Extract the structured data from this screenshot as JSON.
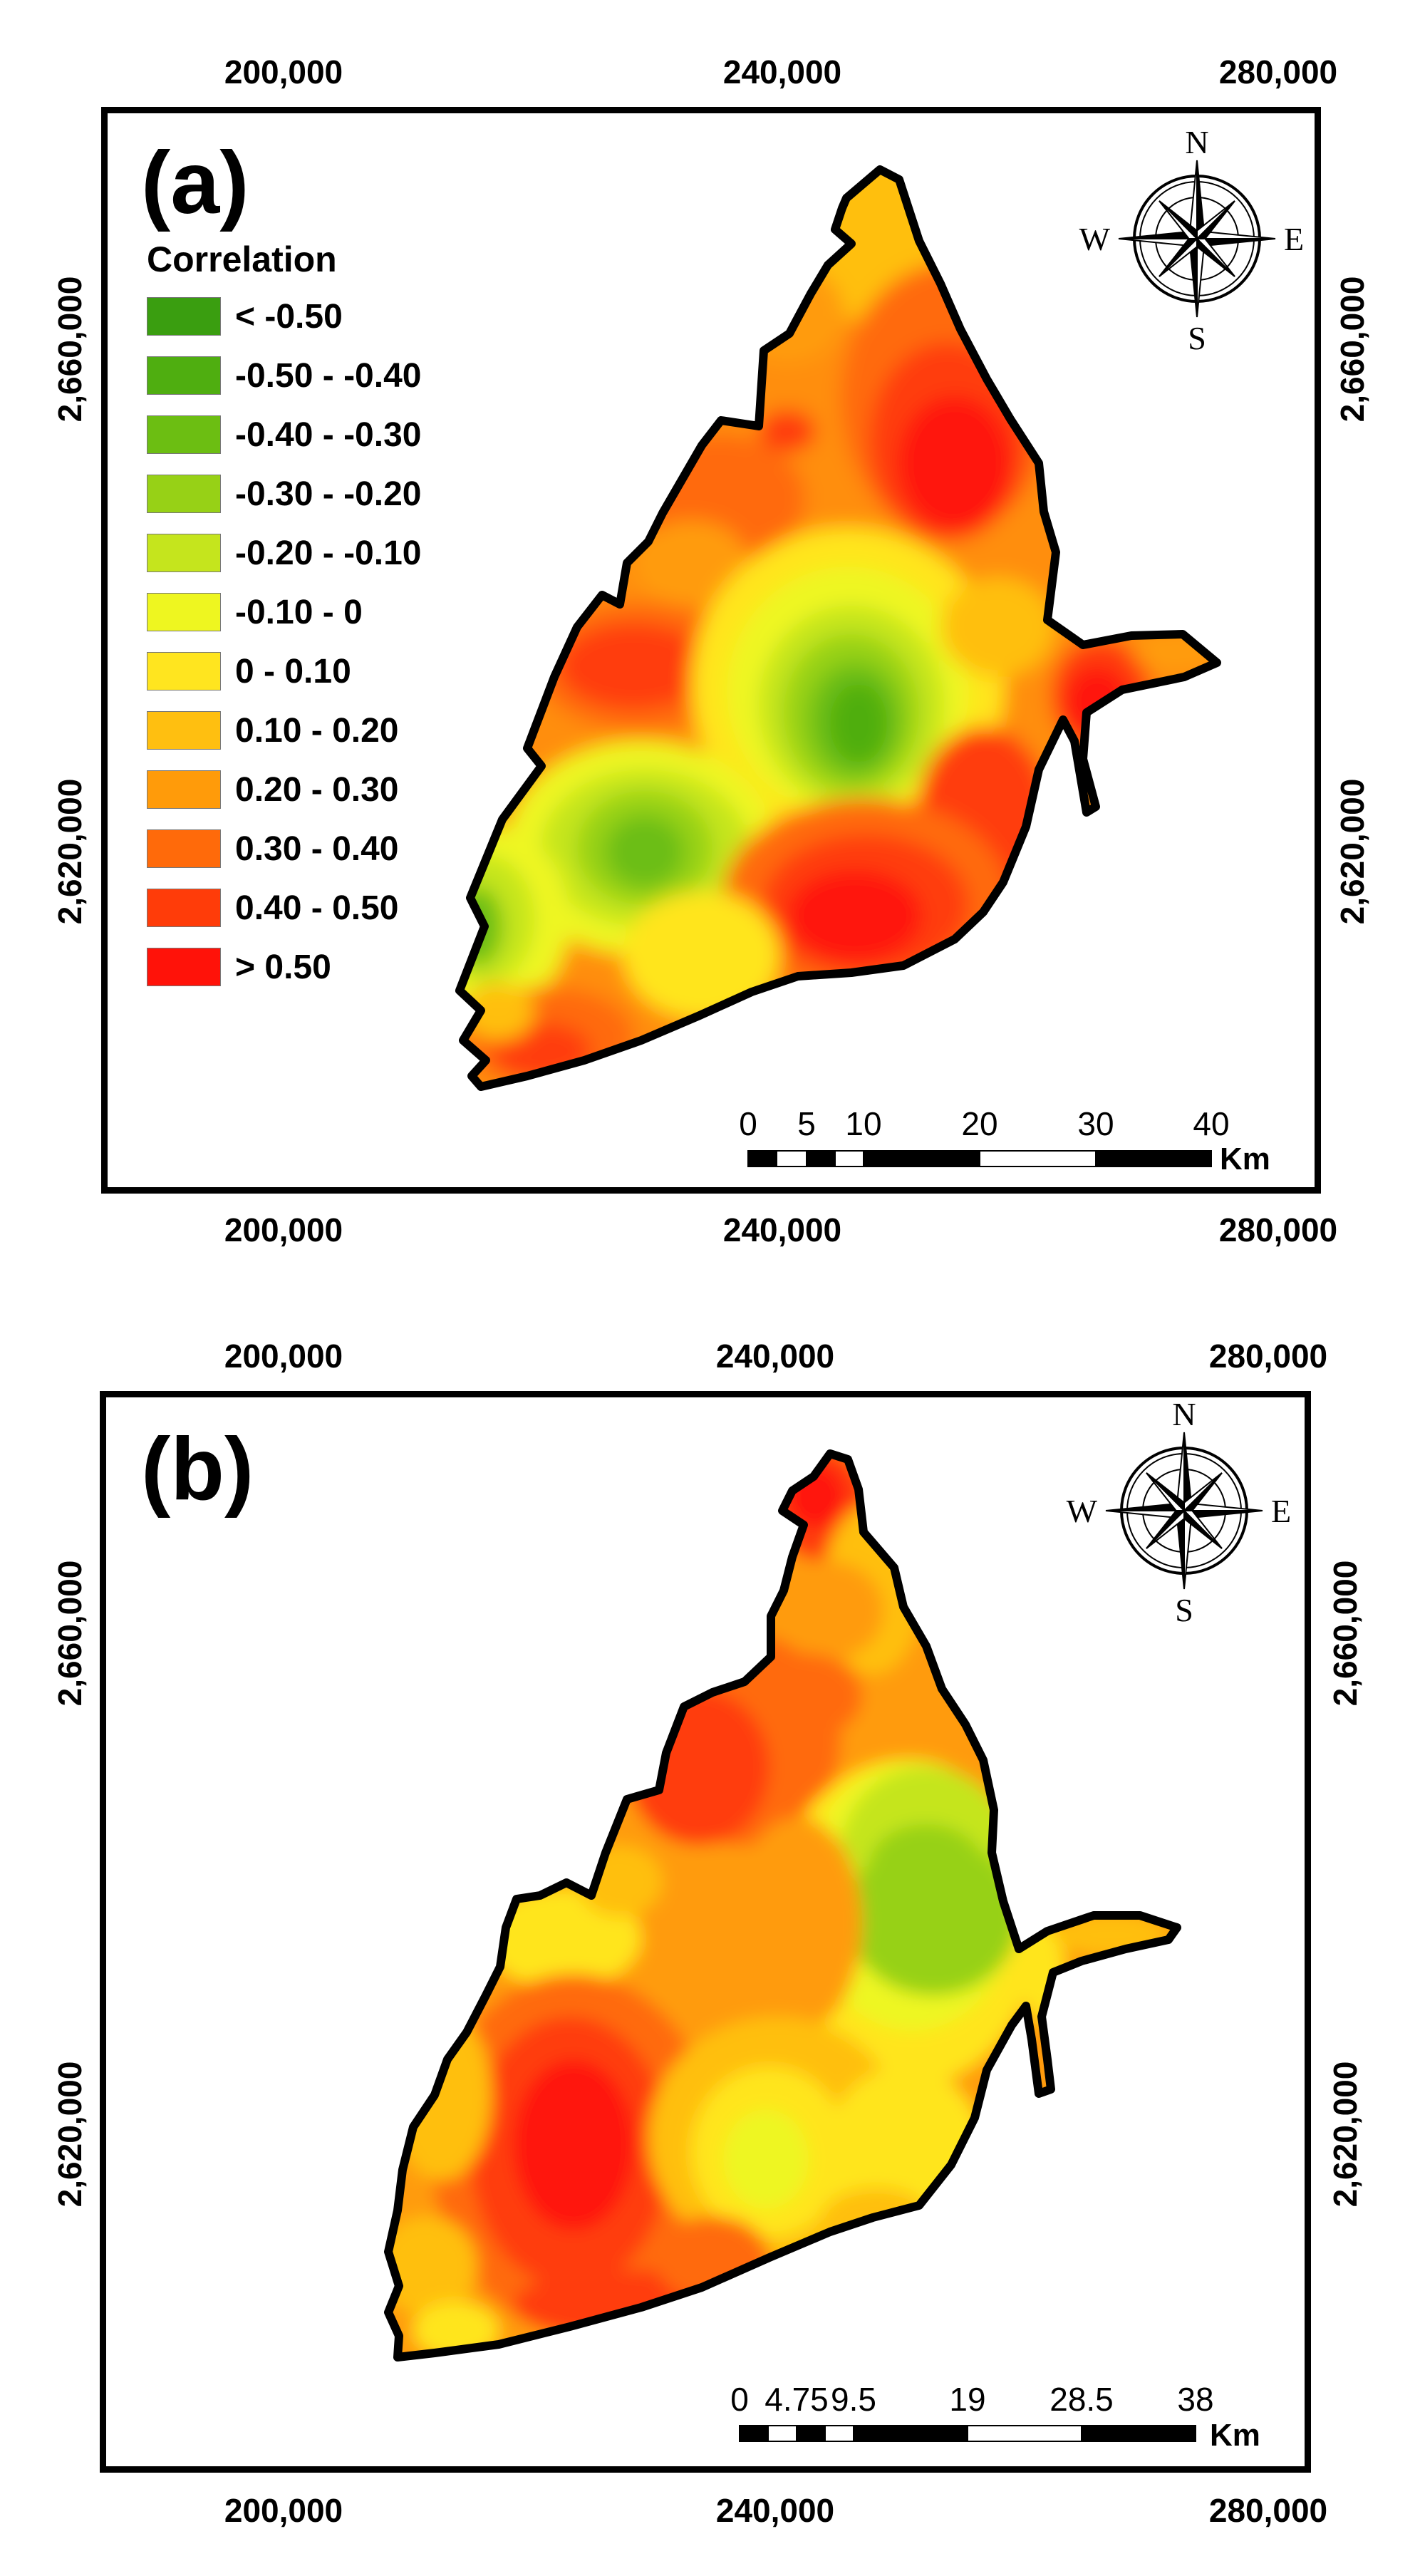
{
  "panel_a": {
    "label": "(a)",
    "x_ticks": [
      "200,000",
      "240,000",
      "280,000"
    ],
    "y_ticks": [
      "2,660,000",
      "2,620,000"
    ],
    "legend": {
      "title": "Correlation",
      "items": [
        {
          "label": "< -0.50",
          "color": "#3a9e10"
        },
        {
          "label": "-0.50 - -0.40",
          "color": "#4fae10"
        },
        {
          "label": "-0.40 - -0.30",
          "color": "#6cbe12"
        },
        {
          "label": "-0.30 - -0.20",
          "color": "#97d116"
        },
        {
          "label": "-0.20 - -0.10",
          "color": "#c5e51d"
        },
        {
          "label": "-0.10 - 0",
          "color": "#eef620"
        },
        {
          "label": "0 - 0.10",
          "color": "#ffe51f"
        },
        {
          "label": "0.10 - 0.20",
          "color": "#ffbf10"
        },
        {
          "label": "0.20 - 0.30",
          "color": "#ff9b0a"
        },
        {
          "label": "0.30 - 0.40",
          "color": "#ff6a0a"
        },
        {
          "label": "0.40 - 0.50",
          "color": "#ff3c09"
        },
        {
          "label": "> 0.50",
          "color": "#ff1209"
        }
      ]
    },
    "compass": {
      "n": "N",
      "s": "S",
      "e": "E",
      "w": "W"
    },
    "scale": {
      "labels": [
        "0",
        "5",
        "10",
        "20",
        "30",
        "40"
      ],
      "unit": "Km"
    }
  },
  "panel_b": {
    "label": "(b)",
    "x_ticks": [
      "200,000",
      "240,000",
      "280,000"
    ],
    "y_ticks": [
      "2,660,000",
      "2,620,000"
    ],
    "compass": {
      "n": "N",
      "s": "S",
      "e": "E",
      "w": "W"
    },
    "scale": {
      "labels": [
        "0",
        "4.75",
        "9.5",
        "19",
        "28.5",
        "38"
      ],
      "unit": "Km"
    }
  }
}
